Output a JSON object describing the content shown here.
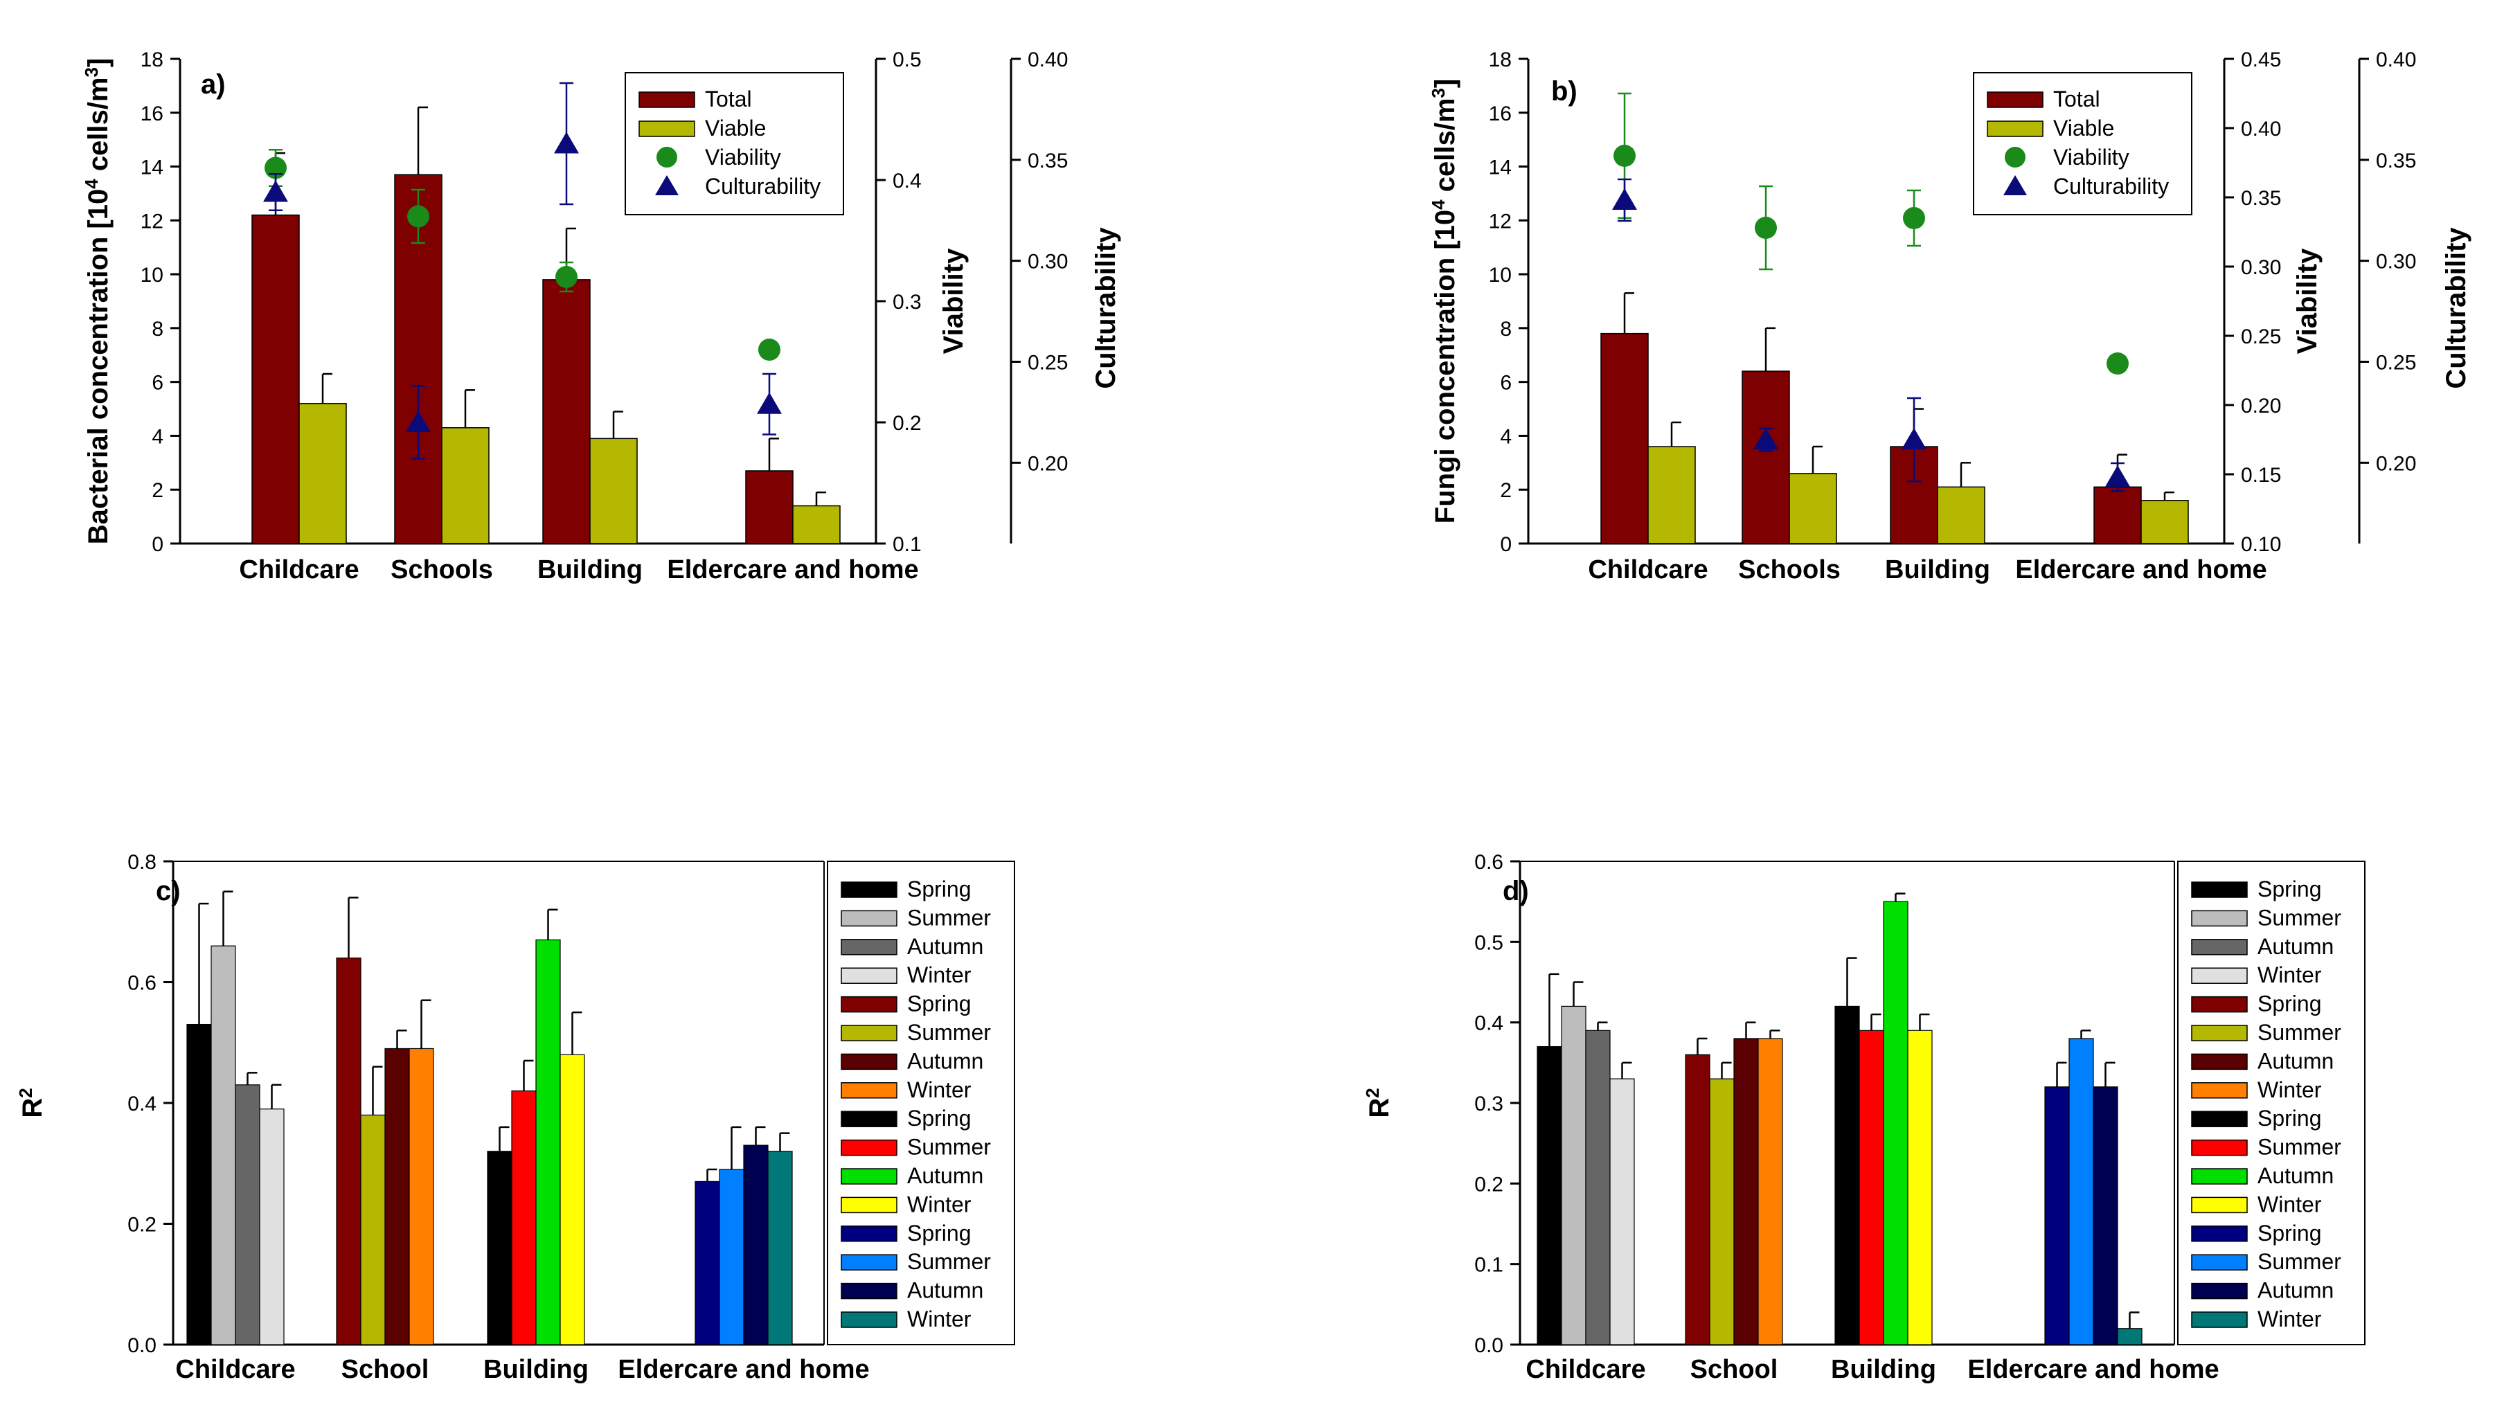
{
  "chart_data": [
    {
      "id": "a",
      "type": "bar",
      "panel_label": "a)",
      "ylabel_prefix": "Bacterial concentration [10",
      "ylabel_sup1": "4",
      "ylabel_mid": " cells/m",
      "ylabel_sup2": "3",
      "ylabel_suffix": "]",
      "ylim": [
        0,
        18
      ],
      "yticks": [
        0,
        2,
        4,
        6,
        8,
        10,
        12,
        14,
        16,
        18
      ],
      "categories": [
        "Childcare",
        "Schools",
        "Building",
        "Eldercare and home"
      ],
      "series": [
        {
          "name": "Total",
          "color": "#7f0000",
          "values": [
            12.2,
            13.7,
            9.8,
            2.7
          ],
          "errors": [
            2.3,
            2.5,
            1.9,
            1.2
          ]
        },
        {
          "name": "Viable",
          "color": "#b5b800",
          "values": [
            5.2,
            4.3,
            3.9,
            1.4
          ],
          "errors": [
            1.1,
            1.4,
            1.0,
            0.5
          ]
        }
      ],
      "secondary_axis_1": {
        "label": "Viability",
        "ylim": [
          0.1,
          0.5
        ],
        "ticks": [
          "0.1",
          "0.2",
          "0.3",
          "0.4",
          "0.5"
        ]
      },
      "secondary_axis_2": {
        "label": "Culturability",
        "ylim": [
          0.16,
          0.4
        ],
        "ticks": [
          "0.20",
          "0.25",
          "0.30",
          "0.35",
          "0.40"
        ]
      },
      "points": [
        {
          "name": "Viability",
          "color": "#1a8a1a",
          "marker": "circle",
          "axis": "secondary_axis_1",
          "values": [
            0.41,
            0.37,
            0.32,
            0.26
          ],
          "errors": [
            0.015,
            0.022,
            0.012,
            0.0
          ]
        },
        {
          "name": "Culturability",
          "color": "#0a0a7a",
          "marker": "triangle",
          "axis": "secondary_axis_1",
          "values": [
            0.39,
            0.2,
            0.43,
            0.215
          ],
          "errors": [
            0.015,
            0.03,
            0.05,
            0.025
          ]
        }
      ]
    },
    {
      "id": "b",
      "type": "bar",
      "panel_label": "b)",
      "ylabel_prefix": "Fungi concentration [10",
      "ylabel_sup1": "4",
      "ylabel_mid": " cells/m",
      "ylabel_sup2": "3",
      "ylabel_suffix": "]",
      "ylim": [
        0,
        18
      ],
      "yticks": [
        0,
        2,
        4,
        6,
        8,
        10,
        12,
        14,
        16,
        18
      ],
      "categories": [
        "Childcare",
        "Schools",
        "Building",
        "Eldercare and home"
      ],
      "series": [
        {
          "name": "Total",
          "color": "#7f0000",
          "values": [
            7.8,
            6.4,
            3.6,
            2.1
          ],
          "errors": [
            1.5,
            1.6,
            1.4,
            1.2
          ]
        },
        {
          "name": "Viable",
          "color": "#b5b800",
          "values": [
            3.6,
            2.6,
            2.1,
            1.6
          ],
          "errors": [
            0.9,
            1.0,
            0.9,
            0.3
          ]
        }
      ],
      "secondary_axis_1": {
        "label": "Viability",
        "ylim": [
          0.1,
          0.45
        ],
        "ticks": [
          "0.10",
          "0.15",
          "0.20",
          "0.25",
          "0.30",
          "0.35",
          "0.40",
          "0.45"
        ]
      },
      "secondary_axis_2": {
        "label": "Culturability",
        "ylim": [
          0.16,
          0.4
        ],
        "ticks": [
          "0.20",
          "0.25",
          "0.30",
          "0.35",
          "0.40"
        ]
      },
      "points": [
        {
          "name": "Viability",
          "color": "#1a8a1a",
          "marker": "circle",
          "axis": "secondary_axis_1",
          "values": [
            0.38,
            0.328,
            0.335,
            0.23
          ],
          "errors": [
            0.045,
            0.03,
            0.02,
            0.0
          ]
        },
        {
          "name": "Culturability",
          "color": "#0a0a7a",
          "marker": "triangle",
          "axis": "secondary_axis_1",
          "values": [
            0.348,
            0.175,
            0.175,
            0.148
          ],
          "errors": [
            0.015,
            0.008,
            0.03,
            0.01
          ]
        }
      ]
    },
    {
      "id": "c",
      "type": "bar",
      "panel_label": "c)",
      "ylabel": "R",
      "ylabel_sup": "2",
      "ylim": [
        0,
        0.8
      ],
      "yticks": [
        "0.0",
        "0.2",
        "0.4",
        "0.6",
        "0.8"
      ],
      "categories": [
        "Childcare",
        "School",
        "Building",
        "Eldercare and home"
      ],
      "groups": [
        {
          "values": [
            0.53,
            0.66,
            0.43,
            0.39
          ],
          "errors": [
            0.2,
            0.09,
            0.02,
            0.04
          ],
          "colors": [
            "#000000",
            "#bdbdbd",
            "#666666",
            "#e0e0e0"
          ]
        },
        {
          "values": [
            0.64,
            0.38,
            0.49,
            0.49
          ],
          "errors": [
            0.1,
            0.08,
            0.03,
            0.08
          ],
          "colors": [
            "#7f0000",
            "#b5b800",
            "#5a0000",
            "#ff8000"
          ]
        },
        {
          "values": [
            0.32,
            0.42,
            0.67,
            0.48
          ],
          "errors": [
            0.04,
            0.05,
            0.05,
            0.07
          ],
          "colors": [
            "#000000",
            "#ff0000",
            "#00e000",
            "#ffff00"
          ]
        },
        {
          "values": [
            0.27,
            0.29,
            0.33,
            0.32
          ],
          "errors": [
            0.02,
            0.07,
            0.03,
            0.03
          ],
          "colors": [
            "#00007f",
            "#0080ff",
            "#000050",
            "#007878"
          ]
        }
      ],
      "legend": [
        {
          "name": "Spring",
          "color": "#000000"
        },
        {
          "name": "Summer",
          "color": "#bdbdbd"
        },
        {
          "name": "Autumn",
          "color": "#666666"
        },
        {
          "name": "Winter",
          "color": "#e0e0e0"
        },
        {
          "name": "Spring",
          "color": "#7f0000"
        },
        {
          "name": "Summer",
          "color": "#b5b800"
        },
        {
          "name": "Autumn",
          "color": "#5a0000"
        },
        {
          "name": "Winter",
          "color": "#ff8000"
        },
        {
          "name": "Spring",
          "color": "#000000"
        },
        {
          "name": "Summer",
          "color": "#ff0000"
        },
        {
          "name": "Autumn",
          "color": "#00e000"
        },
        {
          "name": "Winter",
          "color": "#ffff00"
        },
        {
          "name": "Spring",
          "color": "#00007f"
        },
        {
          "name": "Summer",
          "color": "#0080ff"
        },
        {
          "name": "Autumn",
          "color": "#000050"
        },
        {
          "name": "Winter",
          "color": "#007878"
        }
      ]
    },
    {
      "id": "d",
      "type": "bar",
      "panel_label": "d)",
      "ylabel": "R",
      "ylabel_sup": "2",
      "ylim": [
        0,
        0.6
      ],
      "yticks": [
        "0.0",
        "0.1",
        "0.2",
        "0.3",
        "0.4",
        "0.5",
        "0.6"
      ],
      "categories": [
        "Childcare",
        "School",
        "Building",
        "Eldercare and home"
      ],
      "groups": [
        {
          "values": [
            0.37,
            0.42,
            0.39,
            0.33
          ],
          "errors": [
            0.09,
            0.03,
            0.01,
            0.02
          ],
          "colors": [
            "#000000",
            "#bdbdbd",
            "#666666",
            "#e0e0e0"
          ]
        },
        {
          "values": [
            0.36,
            0.33,
            0.38,
            0.38
          ],
          "errors": [
            0.02,
            0.02,
            0.02,
            0.01
          ],
          "colors": [
            "#7f0000",
            "#b5b800",
            "#5a0000",
            "#ff8000"
          ]
        },
        {
          "values": [
            0.42,
            0.39,
            0.55,
            0.39
          ],
          "errors": [
            0.06,
            0.02,
            0.01,
            0.02
          ],
          "colors": [
            "#000000",
            "#ff0000",
            "#00e000",
            "#ffff00"
          ]
        },
        {
          "values": [
            0.32,
            0.38,
            0.32,
            0.02
          ],
          "errors": [
            0.03,
            0.01,
            0.03,
            0.02
          ],
          "colors": [
            "#00007f",
            "#0080ff",
            "#000050",
            "#007878"
          ]
        }
      ],
      "legend": [
        {
          "name": "Spring",
          "color": "#000000"
        },
        {
          "name": "Summer",
          "color": "#bdbdbd"
        },
        {
          "name": "Autumn",
          "color": "#666666"
        },
        {
          "name": "Winter",
          "color": "#e0e0e0"
        },
        {
          "name": "Spring",
          "color": "#7f0000"
        },
        {
          "name": "Summer",
          "color": "#b5b800"
        },
        {
          "name": "Autumn",
          "color": "#5a0000"
        },
        {
          "name": "Winter",
          "color": "#ff8000"
        },
        {
          "name": "Spring",
          "color": "#000000"
        },
        {
          "name": "Summer",
          "color": "#ff0000"
        },
        {
          "name": "Autumn",
          "color": "#00e000"
        },
        {
          "name": "Winter",
          "color": "#ffff00"
        },
        {
          "name": "Spring",
          "color": "#00007f"
        },
        {
          "name": "Summer",
          "color": "#0080ff"
        },
        {
          "name": "Autumn",
          "color": "#000050"
        },
        {
          "name": "Winter",
          "color": "#007878"
        }
      ]
    }
  ]
}
